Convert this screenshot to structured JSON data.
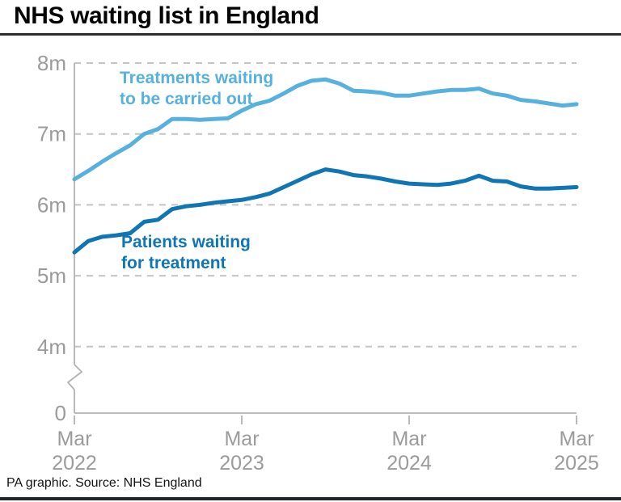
{
  "title": "NHS waiting list in England",
  "footer": {
    "source": "PA graphic. Source: NHS England"
  },
  "colors": {
    "treatments_line": "#57b1df",
    "patients_line": "#0f75b4",
    "axis": "#b2b2b2",
    "grid": "#c4c4c4",
    "tick_label": "#9b9b9b",
    "title_text": "#050505",
    "rule_dark": "#2b2c2e"
  },
  "chart_data": {
    "type": "line",
    "title": "NHS waiting list in England",
    "xlabel": "",
    "ylabel": "",
    "y_unit": "millions",
    "ylim": [
      0,
      8
    ],
    "axis_break_between": [
      0,
      4
    ],
    "grid": "horizontal-dashed",
    "legend_position": "inline-labels",
    "y_ticks": [
      {
        "label": "8m",
        "value": 8
      },
      {
        "label": "7m",
        "value": 7
      },
      {
        "label": "6m",
        "value": 6
      },
      {
        "label": "5m",
        "value": 5
      },
      {
        "label": "4m",
        "value": 4
      },
      {
        "label": "0",
        "value": 0
      }
    ],
    "x_ticks": [
      {
        "line1": "Mar",
        "line2": "2022",
        "month_index": 0
      },
      {
        "line1": "Mar",
        "line2": "2023",
        "month_index": 12
      },
      {
        "line1": "Mar",
        "line2": "2024",
        "month_index": 24
      },
      {
        "line1": "Mar",
        "line2": "2025",
        "month_index": 36
      }
    ],
    "x": [
      "Mar 2022",
      "Apr 2022",
      "May 2022",
      "Jun 2022",
      "Jul 2022",
      "Aug 2022",
      "Sep 2022",
      "Oct 2022",
      "Nov 2022",
      "Dec 2022",
      "Jan 2023",
      "Feb 2023",
      "Mar 2023",
      "Apr 2023",
      "May 2023",
      "Jun 2023",
      "Jul 2023",
      "Aug 2023",
      "Sep 2023",
      "Oct 2023",
      "Nov 2023",
      "Dec 2023",
      "Jan 2024",
      "Feb 2024",
      "Mar 2024",
      "Apr 2024",
      "May 2024",
      "Jun 2024",
      "Jul 2024",
      "Aug 2024",
      "Sep 2024",
      "Oct 2024",
      "Nov 2024",
      "Dec 2024",
      "Jan 2025",
      "Feb 2025",
      "Mar 2025"
    ],
    "series": [
      {
        "name": "Treatments waiting to be carried out",
        "label_lines": [
          "Treatments waiting",
          "to be carried out"
        ],
        "color": "#57b1df",
        "values": [
          6.36,
          6.48,
          6.61,
          6.73,
          6.84,
          7.0,
          7.07,
          7.21,
          7.21,
          7.2,
          7.21,
          7.22,
          7.33,
          7.42,
          7.47,
          7.57,
          7.68,
          7.75,
          7.77,
          7.71,
          7.61,
          7.6,
          7.58,
          7.54,
          7.54,
          7.57,
          7.6,
          7.62,
          7.62,
          7.64,
          7.57,
          7.54,
          7.48,
          7.46,
          7.43,
          7.4,
          7.42
        ]
      },
      {
        "name": "Patients waiting for treatment",
        "label_lines": [
          "Patients waiting",
          "for treatment"
        ],
        "color": "#0f75b4",
        "values": [
          5.33,
          5.49,
          5.55,
          5.57,
          5.6,
          5.76,
          5.79,
          5.94,
          5.98,
          6.0,
          6.03,
          6.05,
          6.07,
          6.11,
          6.16,
          6.25,
          6.34,
          6.43,
          6.5,
          6.47,
          6.42,
          6.4,
          6.37,
          6.33,
          6.3,
          6.29,
          6.28,
          6.3,
          6.34,
          6.41,
          6.34,
          6.33,
          6.26,
          6.23,
          6.23,
          6.24,
          6.25
        ]
      }
    ]
  }
}
